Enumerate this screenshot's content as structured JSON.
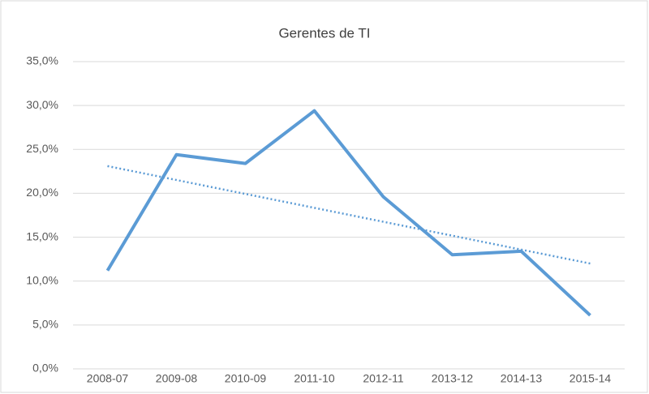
{
  "chart_data": {
    "type": "line",
    "title": "Gerentes  de TI",
    "categories": [
      "2008-07",
      "2009-08",
      "2010-09",
      "2011-10",
      "2012-11",
      "2013-12",
      "2014-13",
      "2015-14"
    ],
    "series": [
      {
        "color": "#5b9bd5",
        "values": [
          11.2,
          24.4,
          23.4,
          29.4,
          19.6,
          13.0,
          13.4,
          6.1
        ]
      }
    ],
    "trend": {
      "color": "#5b9bd5",
      "style": "dotted",
      "values": [
        23.1,
        12.0
      ]
    },
    "ylim": [
      0,
      35
    ],
    "yticks": [
      {
        "value": 0,
        "label": "0,0%"
      },
      {
        "value": 5,
        "label": "5,0%"
      },
      {
        "value": 10,
        "label": "10,0%"
      },
      {
        "value": 15,
        "label": "15,0%"
      },
      {
        "value": 20,
        "label": "20,0%"
      },
      {
        "value": 25,
        "label": "25,0%"
      },
      {
        "value": 30,
        "label": "30,0%"
      },
      {
        "value": 35,
        "label": "35,0%"
      }
    ],
    "grid": true
  }
}
